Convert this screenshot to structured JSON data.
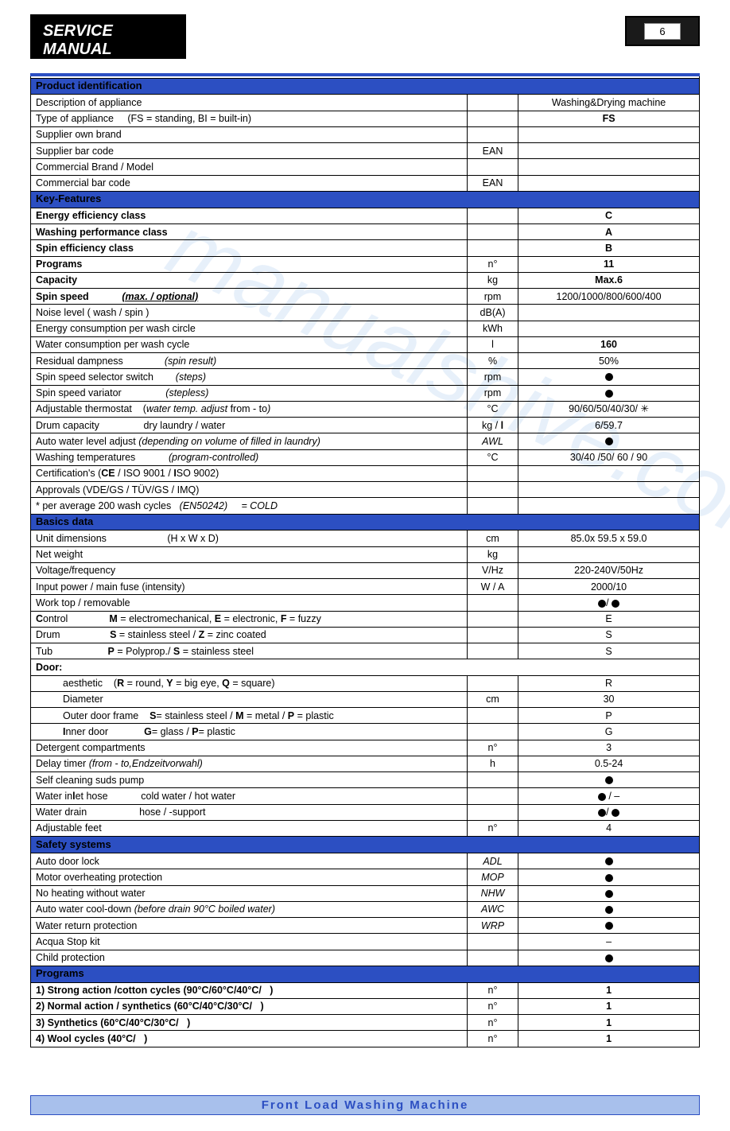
{
  "header": {
    "title": "SERVICE MANUAL",
    "page_number": "6"
  },
  "footer": {
    "text": "Front   Load   Washing   Machine"
  },
  "watermark": "manualshive.com",
  "colors": {
    "section_bg": "#2c4fc2",
    "footer_bg": "#a8c0ec",
    "footer_text": "#2c4fc2",
    "border": "#000000"
  },
  "sections": [
    {
      "title": "Product identification",
      "rows": [
        {
          "label": "Description of appliance",
          "unit": "",
          "value": "Washing&Drying machine"
        },
        {
          "label_html": "Type of appliance&nbsp;&nbsp;&nbsp;&nbsp;&nbsp;(FS = standing, BI = built-in)",
          "unit": "",
          "value": "FS",
          "bold_value": true
        },
        {
          "label": "Supplier own brand",
          "unit": "",
          "value": ""
        },
        {
          "label": "Supplier bar code",
          "unit": "EAN",
          "value": ""
        },
        {
          "label": "Commercial    Brand / Model",
          "unit": "",
          "value": ""
        },
        {
          "label": "Commercial bar code",
          "unit": "EAN",
          "value": ""
        }
      ]
    },
    {
      "title": "Key-Features",
      "rows": [
        {
          "label": "Energy efficiency class",
          "bold_label": true,
          "unit": "",
          "value": "C",
          "bold_value": true
        },
        {
          "label": "Washing performance class",
          "bold_label": true,
          "unit": "",
          "value": "A",
          "bold_value": true
        },
        {
          "label": "Spin efficiency class",
          "bold_label": true,
          "unit": "",
          "value": "B",
          "bold_value": true
        },
        {
          "label": "Programs",
          "bold_label": true,
          "unit": "n°",
          "value": "11",
          "bold_value": true
        },
        {
          "label": "Capacity",
          "bold_label": true,
          "unit": "kg",
          "value": "Max.6",
          "bold_value": true
        },
        {
          "label_html": "<b>Spin speed&nbsp;&nbsp;&nbsp;&nbsp;&nbsp;&nbsp;&nbsp;&nbsp;&nbsp;&nbsp;&nbsp;&nbsp;<i><u>(max. / optional)</u></i></b>",
          "unit": "rpm",
          "value": "1200/1000/800/600/400"
        },
        {
          "label": "Noise level   ( wash / spin )",
          "unit": "dB(A)",
          "value": ""
        },
        {
          "label": "Energy consumption per wash circle",
          "unit": "kWh",
          "value": ""
        },
        {
          "label": "Water consumption per wash cycle",
          "unit": "l",
          "value": "160",
          "bold_value": true
        },
        {
          "label_html": "Residual dampness&nbsp;&nbsp;&nbsp;&nbsp;&nbsp;&nbsp;&nbsp;&nbsp;&nbsp;&nbsp;&nbsp;&nbsp;&nbsp;&nbsp;&nbsp;<i>(spin result)</i>",
          "unit": "%",
          "value": "50%"
        },
        {
          "label_html": "Spin speed selector switch&nbsp;&nbsp;&nbsp;&nbsp;&nbsp;&nbsp;&nbsp;&nbsp;<i>(steps)</i>",
          "unit": "rpm",
          "value_dot": true
        },
        {
          "label_html": "Spin speed variator&nbsp;&nbsp;&nbsp;&nbsp;&nbsp;&nbsp;&nbsp;&nbsp;&nbsp;&nbsp;&nbsp;&nbsp;&nbsp;&nbsp;&nbsp;&nbsp;<i>(stepless)</i>",
          "unit": "rpm",
          "value_dot": true
        },
        {
          "label_html": "Adjustable thermostat&nbsp;&nbsp;&nbsp;&nbsp;(<i>water temp. adjust</i>  from - to<i>)</i>",
          "unit": "°C",
          "value": "90/60/50/40/30/ ✳"
        },
        {
          "label_html": "Drum capacity&nbsp;&nbsp;&nbsp;&nbsp;&nbsp;&nbsp;&nbsp;&nbsp;&nbsp;&nbsp;&nbsp;&nbsp;&nbsp;&nbsp;&nbsp;&nbsp;dry laundry / water",
          "unit_html": "kg / <b>l</b>",
          "value": "6/59.7"
        },
        {
          "label_html": "Auto water level adjust <i>(depending on volume of filled in laundry)</i>",
          "unit_html": "<i>AWL</i>",
          "value_dot": true
        },
        {
          "label_html": "Washing temperatures&nbsp;&nbsp;&nbsp;&nbsp;&nbsp;&nbsp;&nbsp;&nbsp;&nbsp;&nbsp;&nbsp;&nbsp;<i>(program-controlled)</i>",
          "unit": "°C",
          "value": "30/40 /50/ 60 / 90"
        },
        {
          "label_html": "Certification's (<b>CE</b>  / ISO 9001 / <b>I</b>SO 9002)",
          "unit": "",
          "value": ""
        },
        {
          "label": "Approvals (VDE/GS / TÜV/GS / IMQ)",
          "unit": "",
          "value": ""
        },
        {
          "label_html": "* per average 200 wash cycles&nbsp;&nbsp;&nbsp;<i>(EN50242)&nbsp;&nbsp;&nbsp;&nbsp;&nbsp;= COLD</i>",
          "unit": "",
          "value": ""
        }
      ]
    },
    {
      "title": "Basics data",
      "rows": [
        {
          "label_html": "Unit dimensions&nbsp;&nbsp;&nbsp;&nbsp;&nbsp;&nbsp;&nbsp;&nbsp;&nbsp;&nbsp;&nbsp;&nbsp;&nbsp;&nbsp;&nbsp;&nbsp;&nbsp;&nbsp;&nbsp;&nbsp;&nbsp;&nbsp;(H x W x D)",
          "unit": "cm",
          "value": "85.0x 59.5 x 59.0"
        },
        {
          "label": "Net weight",
          "unit": "kg",
          "value": ""
        },
        {
          "label": "Voltage/frequency",
          "unit": "V/Hz",
          "value": "220-240V/50Hz"
        },
        {
          "label": "Input power  /  main fuse (intensity)",
          "unit": "W / A",
          "value": "2000/10"
        },
        {
          "label": "Work top / removable",
          "unit": "",
          "value_html": "<span class='dot'></span>/ <span class='dot'></span>"
        },
        {
          "label_html": "<b>C</b>ontrol&nbsp;&nbsp;&nbsp;&nbsp;&nbsp;&nbsp;&nbsp;&nbsp;&nbsp;&nbsp;&nbsp;&nbsp;&nbsp;&nbsp;&nbsp;<b>M</b> = electromechanical, <b>E</b> = electronic, <b>F</b> = fuzzy",
          "unit": "",
          "value": "E"
        },
        {
          "label_html": "Drum&nbsp;&nbsp;&nbsp;&nbsp;&nbsp;&nbsp;&nbsp;&nbsp;&nbsp;&nbsp;&nbsp;&nbsp;&nbsp;&nbsp;&nbsp;&nbsp;&nbsp;&nbsp;<b>S</b> = stainless steel / <b>Z</b> = zinc coated",
          "unit": "",
          "value": "S"
        },
        {
          "label_html": "Tub&nbsp;&nbsp;&nbsp;&nbsp;&nbsp;&nbsp;&nbsp;&nbsp;&nbsp;&nbsp;&nbsp;&nbsp;&nbsp;&nbsp;&nbsp;&nbsp;&nbsp;&nbsp;&nbsp;&nbsp;<b>P</b> = Polyprop./ <b>S</b> = stainless steel",
          "unit": "",
          "value": "S"
        },
        {
          "label_html": "<b>Door:</b>",
          "unit": "",
          "value": "",
          "merge": true
        },
        {
          "label_html": "aesthetic&nbsp;&nbsp;&nbsp;&nbsp;(<b>R</b> = round, <b>Y</b> = big eye, <b>Q</b> = square)",
          "indent": true,
          "unit": "",
          "value": "R"
        },
        {
          "label": "Diameter",
          "indent": true,
          "unit": "cm",
          "value": "30"
        },
        {
          "label_html": "Outer door  frame&nbsp;&nbsp;&nbsp;&nbsp;<b>S</b>= stainless steel / <b>M</b> = metal / <b>P</b> = plastic",
          "indent": true,
          "unit": "",
          "value": "P"
        },
        {
          "label_html": "<b>I</b>nner door&nbsp;&nbsp;&nbsp;&nbsp;&nbsp;&nbsp;&nbsp;&nbsp;&nbsp;&nbsp;&nbsp;&nbsp;&nbsp;<b>G</b>= glass / <b>P</b>= plastic",
          "indent": true,
          "unit": "",
          "value": "G"
        },
        {
          "label": "Detergent compartments",
          "unit": "n°",
          "value": "3"
        },
        {
          "label_html": "Delay timer <i>(from - to,Endzeitvorwahl)</i>",
          "unit": "h",
          "value": "0.5-24"
        },
        {
          "label": "Self cleaning suds pump",
          "unit": "",
          "value_dot": true
        },
        {
          "label_html": "Water in<b>l</b>et hose&nbsp;&nbsp;&nbsp;&nbsp;&nbsp;&nbsp;&nbsp;&nbsp;&nbsp;&nbsp;&nbsp;&nbsp;cold water / hot water",
          "unit": "",
          "value_html": "<span class='dot'></span> / –"
        },
        {
          "label_html": "Water drain&nbsp;&nbsp;&nbsp;&nbsp;&nbsp;&nbsp;&nbsp;&nbsp;&nbsp;&nbsp;&nbsp;&nbsp;&nbsp;&nbsp;&nbsp;&nbsp;&nbsp;&nbsp;&nbsp;hose / -support",
          "unit": "",
          "value_html": "<span class='dot'></span>/ <span class='dot'></span>"
        },
        {
          "label": "Adjustable feet",
          "unit": "n°",
          "value": "4"
        }
      ]
    },
    {
      "title": "Safety systems",
      "rows": [
        {
          "label": "Auto door lock",
          "unit_html": "<i>ADL</i>",
          "value_dot": true
        },
        {
          "label": "Motor overheating protection",
          "unit_html": "<i>MOP</i>",
          "value_dot": true
        },
        {
          "label": "No heating without water",
          "unit_html": "<i>NHW</i>",
          "value_dot": true
        },
        {
          "label_html": "Auto water cool-down <i>(before drain 90°C boiled water)</i>",
          "unit_html": "<i>AWC</i>",
          "value_dot": true
        },
        {
          "label": "Water return protection",
          "unit_html": "<i>WRP</i>",
          "value_dot": true
        },
        {
          "label": "Acqua Stop kit",
          "unit": "",
          "value": "–"
        },
        {
          "label": "Child protection",
          "unit": "",
          "value_dot": true
        }
      ]
    },
    {
      "title": "Programs",
      "rows": [
        {
          "label_html": "<b>1) Strong action /cotton cycles  (90°C/60°C/40°C/&nbsp;&nbsp;&nbsp;)</b>",
          "unit": "n°",
          "value": "1",
          "bold_value": true
        },
        {
          "label_html": "<b>2) Normal action / synthetics  (60°C/40°C/30°C/&nbsp;&nbsp;&nbsp;)</b>",
          "unit": "n°",
          "value": "1",
          "bold_value": true
        },
        {
          "label_html": "<b>3) Synthetics  (60°C/40°C/30°C/&nbsp;&nbsp;&nbsp;)</b>",
          "unit": "n°",
          "value": "1",
          "bold_value": true
        },
        {
          "label_html": "<b>4) Wool cycles  (40°C/&nbsp;&nbsp;&nbsp;)</b>",
          "unit": "n°",
          "value": "1",
          "bold_value": true
        }
      ]
    }
  ]
}
